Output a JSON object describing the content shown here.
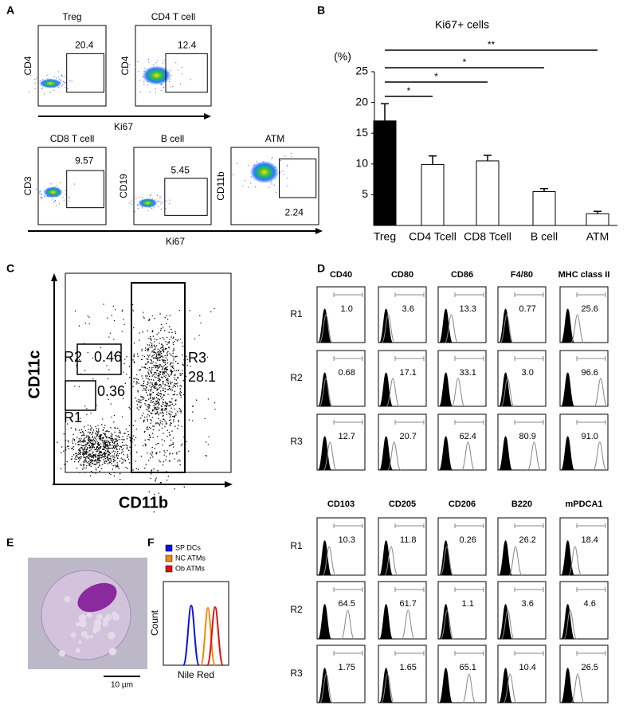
{
  "chart_data": {
    "type": "bar",
    "title": "Ki67+ cells",
    "ylabel": "(%)",
    "categories": [
      "Treg",
      "CD4 Tcell",
      "CD8 Tcell",
      "B cell",
      "ATM"
    ],
    "values": [
      17,
      9.9,
      10.5,
      5.5,
      1.9
    ],
    "errors": [
      2.8,
      1.4,
      0.9,
      0.5,
      0.4
    ],
    "colors": [
      "#000000",
      "#ffffff",
      "#ffffff",
      "#ffffff",
      "#ffffff"
    ],
    "ylim": [
      0,
      25
    ],
    "yticks": [
      5,
      10,
      15,
      20,
      25
    ],
    "annotations": [
      {
        "from": "Treg",
        "to": "ATM",
        "label": "**"
      },
      {
        "from": "Treg",
        "to": "B cell",
        "label": "*"
      },
      {
        "from": "Treg",
        "to": "CD8 Tcell",
        "label": "*"
      },
      {
        "from": "Treg",
        "to": "CD4 Tcell",
        "label": "*"
      }
    ]
  },
  "panels": {
    "letters": [
      "A",
      "B",
      "C",
      "D",
      "E",
      "F"
    ],
    "A": {
      "xlabel": "Ki67",
      "plots": [
        {
          "title": "Treg",
          "ylabel": "CD4",
          "value": "20.4"
        },
        {
          "title": "CD4 T cell",
          "ylabel": "CD4",
          "value": "12.4"
        },
        {
          "title": "CD8 T cell",
          "ylabel": "CD3",
          "value": "9.57"
        },
        {
          "title": "B cell",
          "ylabel": "CD19",
          "value": "5.45"
        },
        {
          "title": "ATM",
          "ylabel": "CD11b",
          "value": "2.24"
        }
      ]
    },
    "C": {
      "xlabel": "CD11b",
      "ylabel": "CD11c",
      "gates": [
        {
          "name": "R2",
          "value": "0.46"
        },
        {
          "name": "R1",
          "value": "0.36"
        },
        {
          "name": "R3",
          "value": "28.1"
        }
      ]
    },
    "D": {
      "blocks": [
        {
          "markers": [
            "CD40",
            "CD80",
            "CD86",
            "F4/80",
            "MHC class II"
          ],
          "rows": [
            {
              "name": "R1",
              "values": [
                "1.0",
                "3.6",
                "13.3",
                "0.77",
                "25.6"
              ]
            },
            {
              "name": "R2",
              "values": [
                "0.68",
                "17.1",
                "33.1",
                "3.0",
                "96.6"
              ]
            },
            {
              "name": "R3",
              "values": [
                "12.7",
                "20.7",
                "62.4",
                "80.9",
                "91.0"
              ]
            }
          ]
        },
        {
          "markers": [
            "CD103",
            "CD205",
            "CD206",
            "B220",
            "mPDCA1"
          ],
          "rows": [
            {
              "name": "R1",
              "values": [
                "10.3",
                "11.8",
                "0.26",
                "26.2",
                "18.4"
              ]
            },
            {
              "name": "R2",
              "values": [
                "64.5",
                "61.7",
                "1.1",
                "3.6",
                "4.6"
              ]
            },
            {
              "name": "R3",
              "values": [
                "1.75",
                "1.65",
                "65.1",
                "10.4",
                "26.5"
              ]
            }
          ]
        }
      ]
    },
    "E": {
      "scale": "10 µm"
    },
    "F": {
      "legend": [
        {
          "name": "SP DCs",
          "color": "#1010e0"
        },
        {
          "name": "NC ATMs",
          "color": "#f08a10"
        },
        {
          "name": "Ob ATMs",
          "color": "#e01010"
        }
      ],
      "ylabel": "Count",
      "xlabel": "Nile Red"
    }
  }
}
